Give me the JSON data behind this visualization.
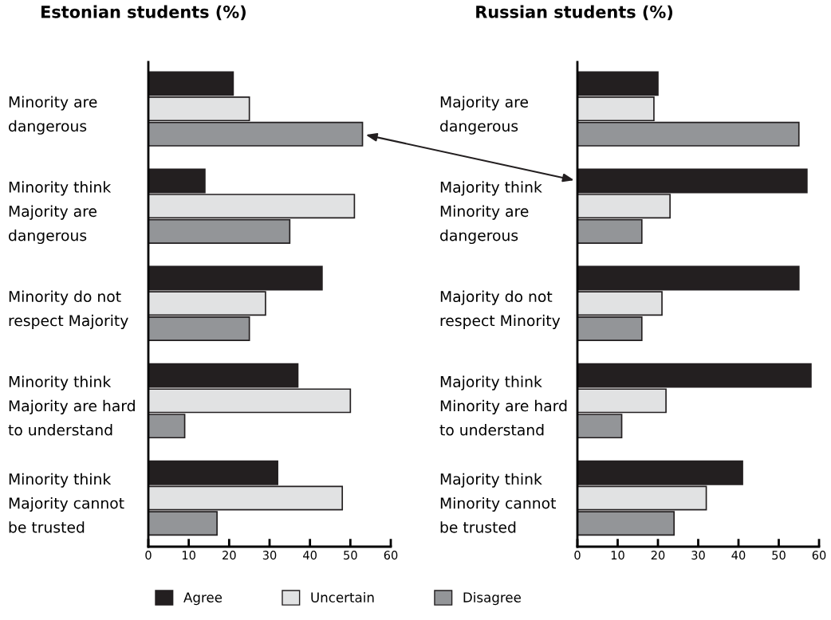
{
  "chart_data": [
    {
      "type": "bar",
      "orientation": "horizontal",
      "title": "Estonian students (%)",
      "categories": [
        "Minority are\ndangerous",
        "Minority think\nMajority are\ndangerous",
        "Minority do not\nrespect Majority",
        "Minority think\nMajority are hard\nto understand",
        "Minority think\nMajority cannot\nbe trusted"
      ],
      "series": [
        {
          "name": "Agree",
          "color": "#231f20",
          "values": [
            21,
            14,
            43,
            37,
            32
          ]
        },
        {
          "name": "Uncertain",
          "color": "#e1e2e3",
          "values": [
            25,
            51,
            29,
            50,
            48
          ]
        },
        {
          "name": "Disagree",
          "color": "#939598",
          "values": [
            53,
            35,
            25,
            9,
            17
          ]
        }
      ],
      "xlim": [
        0,
        60
      ],
      "xticks": [
        0,
        10,
        20,
        30,
        40,
        50,
        60
      ],
      "grid": false,
      "legend": "bottom"
    },
    {
      "type": "bar",
      "orientation": "horizontal",
      "title": "Russian students (%)",
      "categories": [
        "Majority are\ndangerous",
        "Majority think\nMinority are\ndangerous",
        "Majority do not\nrespect Minority",
        "Majority think\nMinority are hard\nto understand",
        "Majority think\nMinority cannot\nbe trusted"
      ],
      "series": [
        {
          "color": "#231f20",
          "values": [
            20,
            57,
            55,
            58,
            41
          ]
        },
        {
          "color": "#e1e2e3",
          "values": [
            19,
            23,
            21,
            22,
            32
          ]
        },
        {
          "color": "#939598",
          "values": [
            55,
            16,
            16,
            11,
            24
          ]
        }
      ],
      "xlim": [
        0,
        60
      ],
      "xticks": [
        0,
        10,
        20,
        30,
        40,
        50,
        60
      ],
      "grid": false
    }
  ]
}
